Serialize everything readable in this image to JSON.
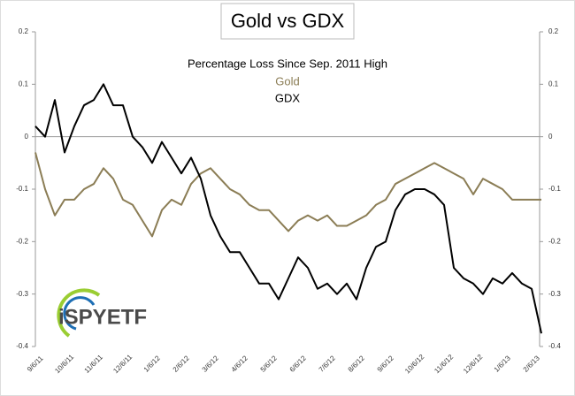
{
  "chart_data": {
    "type": "line",
    "title": "Gold vs GDX",
    "subtitle": "Percentage Loss Since Sep. 2011 High",
    "logo": "iSPYETF",
    "categories": [
      "9/6/11",
      null,
      null,
      "10/6/11",
      null,
      null,
      "11/6/11",
      null,
      null,
      "12/6/11",
      null,
      null,
      "1/6/12",
      null,
      null,
      "2/6/12",
      null,
      null,
      "3/6/12",
      null,
      null,
      "4/6/12",
      null,
      null,
      "5/6/12",
      null,
      null,
      "6/6/12",
      null,
      null,
      "7/6/12",
      null,
      null,
      "8/6/12",
      null,
      null,
      "9/6/12",
      null,
      null,
      "10/6/12",
      null,
      null,
      "11/6/12",
      null,
      null,
      "12/6/12",
      null,
      null,
      "1/6/13",
      null,
      null,
      "2/6/13",
      null
    ],
    "series": [
      {
        "name": "Gold",
        "color": "#8b7d55",
        "values": [
          -0.03,
          -0.1,
          -0.15,
          -0.12,
          -0.12,
          -0.1,
          -0.09,
          -0.06,
          -0.08,
          -0.12,
          -0.13,
          -0.16,
          -0.19,
          -0.14,
          -0.12,
          -0.13,
          -0.09,
          -0.07,
          -0.06,
          -0.08,
          -0.1,
          -0.11,
          -0.13,
          -0.14,
          -0.14,
          -0.16,
          -0.18,
          -0.16,
          -0.15,
          -0.16,
          -0.15,
          -0.17,
          -0.17,
          -0.16,
          -0.15,
          -0.13,
          -0.12,
          -0.09,
          -0.08,
          -0.07,
          -0.06,
          -0.05,
          -0.06,
          -0.07,
          -0.08,
          -0.11,
          -0.08,
          -0.09,
          -0.1,
          -0.12,
          -0.12,
          -0.12,
          -0.12
        ]
      },
      {
        "name": "GDX",
        "color": "#000000",
        "values": [
          0.02,
          0.0,
          0.07,
          -0.03,
          0.02,
          0.06,
          0.07,
          0.1,
          0.06,
          0.06,
          0.0,
          -0.02,
          -0.05,
          -0.01,
          -0.04,
          -0.07,
          -0.04,
          -0.08,
          -0.15,
          -0.19,
          -0.22,
          -0.22,
          -0.25,
          -0.28,
          -0.28,
          -0.31,
          -0.27,
          -0.23,
          -0.25,
          -0.29,
          -0.28,
          -0.3,
          -0.28,
          -0.31,
          -0.25,
          -0.21,
          -0.2,
          -0.14,
          -0.11,
          -0.1,
          -0.1,
          -0.11,
          -0.13,
          -0.25,
          -0.27,
          -0.28,
          -0.3,
          -0.27,
          -0.28,
          -0.26,
          -0.28,
          -0.29,
          -0.375
        ]
      }
    ],
    "ylim": [
      -0.4,
      0.2
    ],
    "yticks": [
      0.2,
      0.1,
      0,
      -0.1,
      -0.2,
      -0.3,
      -0.4
    ]
  }
}
